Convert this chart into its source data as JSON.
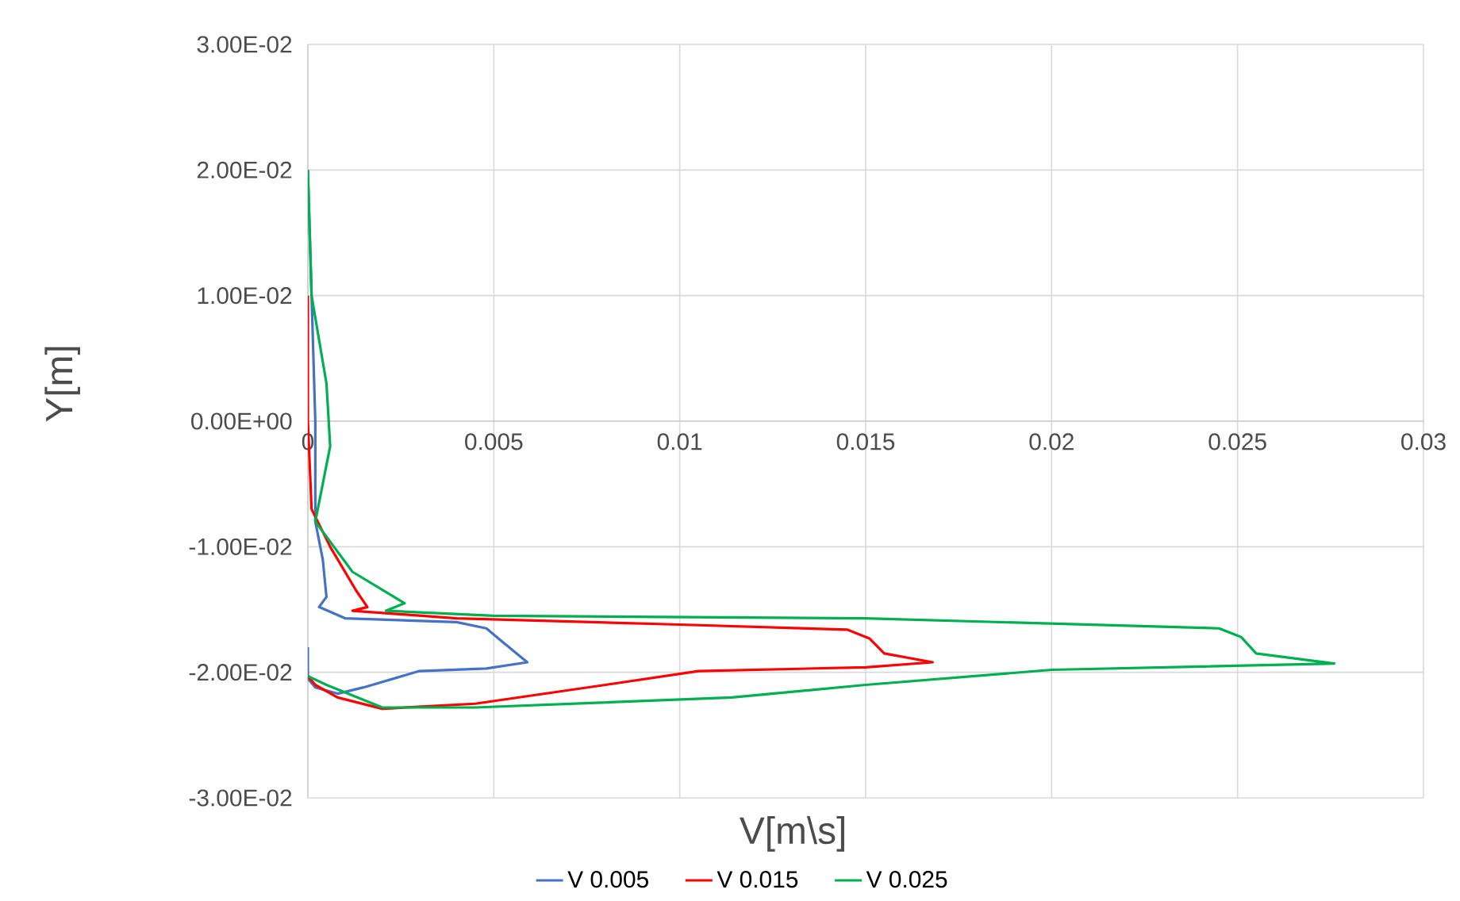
{
  "chart_data": {
    "type": "line",
    "xlabel": "V[m\\s]",
    "ylabel": "Y[m]",
    "xlim": [
      0,
      0.03
    ],
    "ylim": [
      -0.03,
      0.03
    ],
    "xticks": [
      0,
      0.005,
      0.01,
      0.015,
      0.02,
      0.025,
      0.03
    ],
    "yticks": [
      {
        "value": -0.03,
        "label": "-3.00E-02"
      },
      {
        "value": -0.02,
        "label": "-2.00E-02"
      },
      {
        "value": -0.01,
        "label": "-1.00E-02"
      },
      {
        "value": 0,
        "label": "0.00E+00"
      },
      {
        "value": 0.01,
        "label": "1.00E-02"
      },
      {
        "value": 0.02,
        "label": "2.00E-02"
      },
      {
        "value": 0.03,
        "label": "3.00E-02"
      }
    ],
    "grid": true,
    "legend": "bottom",
    "series": [
      {
        "name": "V 0.005",
        "color": "#4472c4",
        "x": [
          0,
          0.0001,
          0.0002,
          0.0002,
          0.0004,
          0.0005,
          0.0003,
          0.001,
          0.004,
          0.0048,
          0.0052,
          0.0059,
          0.0048,
          0.003,
          0.0015,
          0.0008,
          0.0002,
          0,
          0
        ],
        "values": [
          0.02,
          0.01,
          0,
          -0.008,
          -0.011,
          -0.014,
          -0.0148,
          -0.0157,
          -0.016,
          -0.0165,
          -0.0175,
          -0.0192,
          -0.0197,
          -0.0199,
          -0.0212,
          -0.0217,
          -0.0212,
          -0.0205,
          -0.018
        ]
      },
      {
        "name": "V 0.015",
        "color": "#ff0000",
        "x": [
          0,
          0,
          0.0001,
          0.0006,
          0.0013,
          0.0016,
          0.0012,
          0.004,
          0.01,
          0.0145,
          0.0151,
          0.0155,
          0.0168,
          0.015,
          0.0105,
          0.008,
          0.0045,
          0.002,
          0.0008,
          0.0002,
          0
        ],
        "values": [
          0.01,
          0,
          -0.007,
          -0.01,
          -0.0135,
          -0.0148,
          -0.0151,
          -0.0157,
          -0.0162,
          -0.0166,
          -0.0173,
          -0.0185,
          -0.0192,
          -0.0196,
          -0.0199,
          -0.021,
          -0.0225,
          -0.0229,
          -0.022,
          -0.021,
          -0.0203
        ]
      },
      {
        "name": "V 0.025",
        "color": "#00b050",
        "x": [
          0,
          0.0001,
          0.0005,
          0.0006,
          0.0002,
          0.0012,
          0.0026,
          0.0021,
          0.005,
          0.015,
          0.0245,
          0.0251,
          0.0255,
          0.0276,
          0.02,
          0.015,
          0.0114,
          0.0045,
          0.002,
          0.0005,
          0
        ],
        "values": [
          0.02,
          0.01,
          0.003,
          -0.002,
          -0.008,
          -0.012,
          -0.0145,
          -0.0151,
          -0.0155,
          -0.0157,
          -0.0165,
          -0.0172,
          -0.0185,
          -0.0193,
          -0.0198,
          -0.021,
          -0.022,
          -0.0228,
          -0.0228,
          -0.021,
          -0.0203
        ]
      }
    ]
  }
}
